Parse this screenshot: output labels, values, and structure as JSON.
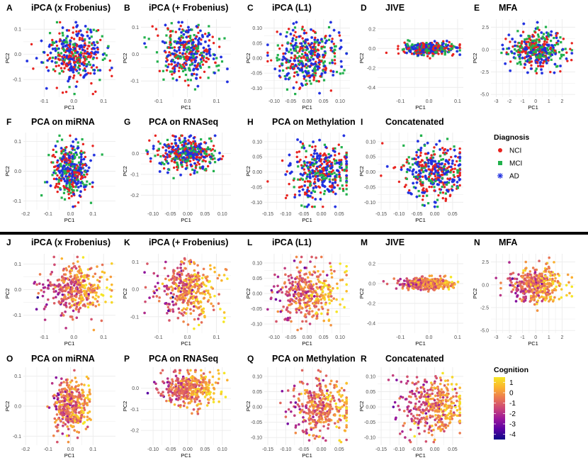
{
  "colors": {
    "NCI": "#e8231f",
    "MCI": "#22b14c",
    "AD": "#1f2fe0",
    "cognition_gradient": [
      "#0d0887",
      "#5b02a3",
      "#9a179b",
      "#cb4678",
      "#eb7852",
      "#fbb32f",
      "#f5e625"
    ],
    "panel_bg": "#ffffff",
    "grid": "#ebebeb",
    "divider": "#000000"
  },
  "chart_data": [
    {
      "id": "A",
      "type": "scatter",
      "title": "iPCA (x Frobenius)",
      "xlabel": "PC1",
      "ylabel": "PC2",
      "color_by": "diagnosis",
      "xlim": [
        -0.17,
        0.14
      ],
      "ylim": [
        -0.17,
        0.14
      ],
      "xticks": [
        -0.1,
        0.0,
        0.1
      ],
      "xtick_labels": [
        "-0.1",
        "0.0",
        "0.1"
      ],
      "yticks": [
        -0.1,
        0.0,
        0.1
      ],
      "ytick_labels": [
        "-0.1",
        "0.0",
        "0.1"
      ],
      "cloud": {
        "cx": 0.0,
        "cy": 0.0,
        "sx": 0.05,
        "sy": 0.05
      },
      "n_points": 380
    },
    {
      "id": "B",
      "type": "scatter",
      "title": "iPCA (+ Frobenius)",
      "xlabel": "PC1",
      "ylabel": "PC2",
      "color_by": "diagnosis",
      "xlim": [
        -0.16,
        0.15
      ],
      "ylim": [
        -0.16,
        0.13
      ],
      "xticks": [
        -0.1,
        0.0,
        0.1
      ],
      "xtick_labels": [
        "-0.1",
        "0.0",
        "0.1"
      ],
      "yticks": [
        -0.1,
        0.0,
        0.1
      ],
      "ytick_labels": [
        "-0.1",
        "0.0",
        "0.1"
      ],
      "cloud": {
        "cx": 0.0,
        "cy": 0.0,
        "sx": 0.05,
        "sy": 0.05
      },
      "n_points": 380
    },
    {
      "id": "C",
      "type": "scatter",
      "title": "iPCA (L1)",
      "xlabel": "PC1",
      "ylabel": "PC2",
      "color_by": "diagnosis",
      "xlim": [
        -0.13,
        0.13
      ],
      "ylim": [
        -0.13,
        0.13
      ],
      "xticks": [
        -0.1,
        -0.05,
        0.0,
        0.05,
        0.1
      ],
      "xtick_labels": [
        "-0.10",
        "-0.05",
        "0.00",
        "0.05",
        "0.10"
      ],
      "yticks": [
        -0.1,
        -0.05,
        0.0,
        0.05,
        0.1
      ],
      "ytick_labels": [
        "-0.10",
        "-0.05",
        "0.00",
        "0.05",
        "0.10"
      ],
      "cloud": {
        "cx": 0.0,
        "cy": 0.0,
        "sx": 0.05,
        "sy": 0.045
      },
      "n_points": 380
    },
    {
      "id": "D",
      "type": "scatter",
      "title": "JIVE",
      "xlabel": "PC1",
      "ylabel": "PC2",
      "color_by": "diagnosis",
      "xlim": [
        -0.18,
        0.12
      ],
      "ylim": [
        -0.5,
        0.3
      ],
      "xticks": [
        -0.1,
        0.0,
        0.1
      ],
      "xtick_labels": [
        "-0.1",
        "0.0",
        "0.1"
      ],
      "yticks": [
        -0.4,
        -0.2,
        0.0,
        0.2
      ],
      "ytick_labels": [
        "-0.4",
        "-0.2",
        "0.0",
        "0.2"
      ],
      "cloud": {
        "cx": 0.0,
        "cy": 0.0,
        "sx": 0.045,
        "sy": 0.03
      },
      "n_points": 380
    },
    {
      "id": "E",
      "type": "scatter",
      "title": "MFA",
      "xlabel": "PC1",
      "ylabel": "PC2",
      "color_by": "diagnosis",
      "xlim": [
        -3.4,
        3.0
      ],
      "ylim": [
        -5.3,
        3.4
      ],
      "xticks": [
        -3,
        -2,
        -1,
        0,
        1,
        2
      ],
      "xtick_labels": [
        "-3",
        "-2",
        "-1",
        "0",
        "1",
        "2"
      ],
      "yticks": [
        -5.0,
        -2.5,
        0.0,
        2.5
      ],
      "ytick_labels": [
        "-5.0",
        "-2.5",
        "0.0",
        "2.5"
      ],
      "cloud": {
        "cx": 0.0,
        "cy": 0.0,
        "sx": 1.0,
        "sy": 1.0
      },
      "n_points": 380
    },
    {
      "id": "F",
      "type": "scatter",
      "title": "PCA on miRNA",
      "xlabel": "PC1",
      "ylabel": "PC2",
      "color_by": "diagnosis",
      "xlim": [
        -0.21,
        0.2
      ],
      "ylim": [
        -0.13,
        0.13
      ],
      "xticks": [
        -0.2,
        -0.1,
        0.0,
        0.1
      ],
      "xtick_labels": [
        "-0.2",
        "-0.1",
        "0.0",
        "0.1"
      ],
      "yticks": [
        -0.1,
        0.0,
        0.1
      ],
      "ytick_labels": [
        "-0.1",
        "0.0",
        "0.1"
      ],
      "cloud": {
        "cx": 0.0,
        "cy": 0.0,
        "sx": 0.04,
        "sy": 0.045
      },
      "n_points": 380
    },
    {
      "id": "G",
      "type": "scatter",
      "title": "PCA on RNASeq",
      "xlabel": "PC1",
      "ylabel": "PC2",
      "color_by": "diagnosis",
      "xlim": [
        -0.135,
        0.125
      ],
      "ylim": [
        -0.27,
        0.1
      ],
      "xticks": [
        -0.1,
        -0.05,
        0.0,
        0.05,
        0.1
      ],
      "xtick_labels": [
        "-0.10",
        "-0.05",
        "0.00",
        "0.05",
        "0.10"
      ],
      "yticks": [
        -0.2,
        -0.1,
        0.0
      ],
      "ytick_labels": [
        "-0.2",
        "-0.1",
        "0.0"
      ],
      "cloud": {
        "cx": 0.0,
        "cy": 0.0,
        "sx": 0.04,
        "sy": 0.04
      },
      "n_points": 380
    },
    {
      "id": "H",
      "type": "scatter",
      "title": "PCA on Methylation",
      "xlabel": "PC1",
      "ylabel": "PC2",
      "color_by": "diagnosis",
      "xlim": [
        -0.16,
        0.08
      ],
      "ylim": [
        -0.125,
        0.13
      ],
      "xticks": [
        -0.15,
        -0.1,
        -0.05,
        0.0,
        0.05
      ],
      "xtick_labels": [
        "-0.15",
        "-0.10",
        "-0.05",
        "0.00",
        "0.05"
      ],
      "yticks": [
        -0.1,
        -0.05,
        0.0,
        0.05,
        0.1
      ],
      "ytick_labels": [
        "-0.10",
        "-0.05",
        "0.00",
        "0.05",
        "0.10"
      ],
      "cloud": {
        "cx": 0.0,
        "cy": 0.0,
        "sx": 0.045,
        "sy": 0.045
      },
      "n_points": 380
    },
    {
      "id": "I",
      "type": "scatter",
      "title": "Concatenated",
      "xlabel": "PC1",
      "ylabel": "PC2",
      "color_by": "diagnosis",
      "xlim": [
        -0.16,
        0.08
      ],
      "ylim": [
        -0.125,
        0.13
      ],
      "xticks": [
        -0.15,
        -0.1,
        -0.05,
        0.0,
        0.05
      ],
      "xtick_labels": [
        "-0.15",
        "-0.10",
        "-0.05",
        "0.00",
        "0.05"
      ],
      "yticks": [
        -0.1,
        -0.05,
        0.0,
        0.05,
        0.1
      ],
      "ytick_labels": [
        "-0.10",
        "-0.05",
        "0.00",
        "0.05",
        "0.10"
      ],
      "cloud": {
        "cx": 0.0,
        "cy": 0.0,
        "sx": 0.045,
        "sy": 0.045
      },
      "n_points": 380
    },
    {
      "id": "J",
      "type": "scatter",
      "title": "iPCA (x Frobenius)",
      "xlabel": "PC1",
      "ylabel": "PC2",
      "color_by": "cognition",
      "xlim": [
        -0.17,
        0.14
      ],
      "ylim": [
        -0.17,
        0.14
      ],
      "xticks": [
        -0.1,
        0.0,
        0.1
      ],
      "xtick_labels": [
        "-0.1",
        "0.0",
        "0.1"
      ],
      "yticks": [
        -0.1,
        0.0,
        0.1
      ],
      "ytick_labels": [
        "-0.1",
        "0.0",
        "0.1"
      ],
      "cloud": {
        "cx": 0.0,
        "cy": 0.0,
        "sx": 0.05,
        "sy": 0.05
      },
      "n_points": 380
    },
    {
      "id": "K",
      "type": "scatter",
      "title": "iPCA (+ Frobenius)",
      "xlabel": "PC1",
      "ylabel": "PC2",
      "color_by": "cognition",
      "xlim": [
        -0.16,
        0.15
      ],
      "ylim": [
        -0.16,
        0.13
      ],
      "xticks": [
        -0.1,
        0.0,
        0.1
      ],
      "xtick_labels": [
        "-0.1",
        "0.0",
        "0.1"
      ],
      "yticks": [
        -0.1,
        0.0,
        0.1
      ],
      "ytick_labels": [
        "-0.1",
        "0.0",
        "0.1"
      ],
      "cloud": {
        "cx": 0.0,
        "cy": 0.0,
        "sx": 0.05,
        "sy": 0.05
      },
      "n_points": 380
    },
    {
      "id": "L",
      "type": "scatter",
      "title": "iPCA (L1)",
      "xlabel": "PC1",
      "ylabel": "PC2",
      "color_by": "cognition",
      "xlim": [
        -0.13,
        0.13
      ],
      "ylim": [
        -0.13,
        0.13
      ],
      "xticks": [
        -0.1,
        -0.05,
        0.0,
        0.05,
        0.1
      ],
      "xtick_labels": [
        "-0.10",
        "-0.05",
        "0.00",
        "0.05",
        "0.10"
      ],
      "yticks": [
        -0.1,
        -0.05,
        0.0,
        0.05,
        0.1
      ],
      "ytick_labels": [
        "-0.10",
        "-0.05",
        "0.00",
        "0.05",
        "0.10"
      ],
      "cloud": {
        "cx": 0.0,
        "cy": 0.0,
        "sx": 0.05,
        "sy": 0.045
      },
      "n_points": 380
    },
    {
      "id": "M",
      "type": "scatter",
      "title": "JIVE",
      "xlabel": "PC1",
      "ylabel": "PC2",
      "color_by": "cognition",
      "xlim": [
        -0.18,
        0.12
      ],
      "ylim": [
        -0.5,
        0.3
      ],
      "xticks": [
        -0.1,
        0.0,
        0.1
      ],
      "xtick_labels": [
        "-0.1",
        "0.0",
        "0.1"
      ],
      "yticks": [
        -0.4,
        -0.2,
        0.0,
        0.2
      ],
      "ytick_labels": [
        "-0.4",
        "-0.2",
        "0.0",
        "0.2"
      ],
      "cloud": {
        "cx": 0.0,
        "cy": 0.0,
        "sx": 0.045,
        "sy": 0.03
      },
      "n_points": 380
    },
    {
      "id": "N",
      "type": "scatter",
      "title": "MFA",
      "xlabel": "PC1",
      "ylabel": "PC2",
      "color_by": "cognition",
      "xlim": [
        -3.4,
        3.0
      ],
      "ylim": [
        -5.3,
        3.4
      ],
      "xticks": [
        -3,
        -2,
        -1,
        0,
        1,
        2
      ],
      "xtick_labels": [
        "-3",
        "-2",
        "-1",
        "0",
        "1",
        "2"
      ],
      "yticks": [
        -5.0,
        -2.5,
        0.0,
        2.5
      ],
      "ytick_labels": [
        "-5.0",
        "-2.5",
        "0.0",
        "2.5"
      ],
      "cloud": {
        "cx": 0.0,
        "cy": 0.0,
        "sx": 1.0,
        "sy": 1.0
      },
      "n_points": 380
    },
    {
      "id": "O",
      "type": "scatter",
      "title": "PCA on miRNA",
      "xlabel": "PC1",
      "ylabel": "PC2",
      "color_by": "cognition",
      "xlim": [
        -0.21,
        0.2
      ],
      "ylim": [
        -0.13,
        0.13
      ],
      "xticks": [
        -0.2,
        -0.1,
        0.0,
        0.1
      ],
      "xtick_labels": [
        "-0.2",
        "-0.1",
        "0.0",
        "0.1"
      ],
      "yticks": [
        -0.1,
        0.0,
        0.1
      ],
      "ytick_labels": [
        "-0.1",
        "0.0",
        "0.1"
      ],
      "cloud": {
        "cx": 0.0,
        "cy": 0.0,
        "sx": 0.04,
        "sy": 0.045
      },
      "n_points": 380
    },
    {
      "id": "P",
      "type": "scatter",
      "title": "PCA on RNASeq",
      "xlabel": "PC1",
      "ylabel": "PC2",
      "color_by": "cognition",
      "xlim": [
        -0.135,
        0.125
      ],
      "ylim": [
        -0.27,
        0.1
      ],
      "xticks": [
        -0.1,
        -0.05,
        0.0,
        0.05,
        0.1
      ],
      "xtick_labels": [
        "-0.10",
        "-0.05",
        "0.00",
        "0.05",
        "0.10"
      ],
      "yticks": [
        -0.2,
        -0.1,
        0.0
      ],
      "ytick_labels": [
        "-0.2",
        "-0.1",
        "0.0"
      ],
      "cloud": {
        "cx": 0.0,
        "cy": 0.0,
        "sx": 0.04,
        "sy": 0.04
      },
      "n_points": 380
    },
    {
      "id": "Q",
      "type": "scatter",
      "title": "PCA on Methylation",
      "xlabel": "PC1",
      "ylabel": "PC2",
      "color_by": "cognition",
      "xlim": [
        -0.16,
        0.08
      ],
      "ylim": [
        -0.125,
        0.13
      ],
      "xticks": [
        -0.15,
        -0.1,
        -0.05,
        0.0,
        0.05
      ],
      "xtick_labels": [
        "-0.15",
        "-0.10",
        "-0.05",
        "0.00",
        "0.05"
      ],
      "yticks": [
        -0.1,
        -0.05,
        0.0,
        0.05,
        0.1
      ],
      "ytick_labels": [
        "-0.10",
        "-0.05",
        "0.00",
        "0.05",
        "0.10"
      ],
      "cloud": {
        "cx": 0.0,
        "cy": 0.0,
        "sx": 0.045,
        "sy": 0.045
      },
      "n_points": 380
    },
    {
      "id": "R",
      "type": "scatter",
      "title": "Concatenated",
      "xlabel": "PC1",
      "ylabel": "PC2",
      "color_by": "cognition",
      "xlim": [
        -0.16,
        0.08
      ],
      "ylim": [
        -0.125,
        0.13
      ],
      "xticks": [
        -0.15,
        -0.1,
        -0.05,
        0.0,
        0.05
      ],
      "xtick_labels": [
        "-0.15",
        "-0.10",
        "-0.05",
        "0.00",
        "0.05"
      ],
      "yticks": [
        -0.1,
        -0.05,
        0.0,
        0.05,
        0.1
      ],
      "ytick_labels": [
        "-0.10",
        "-0.05",
        "0.00",
        "0.05",
        "0.10"
      ],
      "cloud": {
        "cx": 0.0,
        "cy": 0.0,
        "sx": 0.045,
        "sy": 0.045
      },
      "n_points": 380
    }
  ],
  "legend_diagnosis": {
    "title": "Diagnosis",
    "items": [
      {
        "label": "NCI",
        "symbol": "circle",
        "color_key": "NCI"
      },
      {
        "label": "MCI",
        "symbol": "square",
        "color_key": "MCI"
      },
      {
        "label": "AD",
        "symbol": "asterisk",
        "color_key": "AD"
      }
    ]
  },
  "legend_cognition": {
    "title": "Cognition",
    "range": [
      -4.5,
      1.5
    ],
    "tick_values": [
      1,
      0,
      -1,
      -2,
      -3,
      -4
    ],
    "tick_labels": [
      "1",
      "0",
      "-1",
      "-2",
      "-3",
      "-4"
    ]
  }
}
